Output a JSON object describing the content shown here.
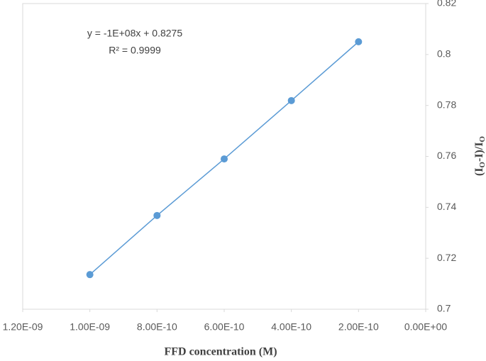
{
  "chart_data": {
    "type": "scatter",
    "x": [
      1e-09,
      8e-10,
      6e-10,
      4e-10,
      2e-10
    ],
    "values": [
      0.7136,
      0.7368,
      0.759,
      0.7819,
      0.805
    ],
    "color": "#5b9bd5",
    "xlim": [
      1.2e-09,
      0
    ],
    "xticks": [
      {
        "value": 1.2e-09,
        "label": "1.20E-09"
      },
      {
        "value": 1e-09,
        "label": "1.00E-09"
      },
      {
        "value": 8e-10,
        "label": "8.00E-10"
      },
      {
        "value": 6e-10,
        "label": "6.00E-10"
      },
      {
        "value": 4e-10,
        "label": "4.00E-10"
      },
      {
        "value": 2e-10,
        "label": "2.00E-10"
      },
      {
        "value": 0,
        "label": "0.00E+00"
      }
    ],
    "ylim": [
      0.7,
      0.82
    ],
    "yticks": [
      0.7,
      0.72,
      0.74,
      0.76,
      0.78,
      0.8,
      0.82
    ],
    "xlabel": "FFD concentration (M)",
    "ylabel_parts": [
      "(I",
      "O",
      "-I)/I",
      "O"
    ],
    "annotations": [
      "y = -1E+08x + 0.8275",
      "R² = 0.9999"
    ]
  }
}
